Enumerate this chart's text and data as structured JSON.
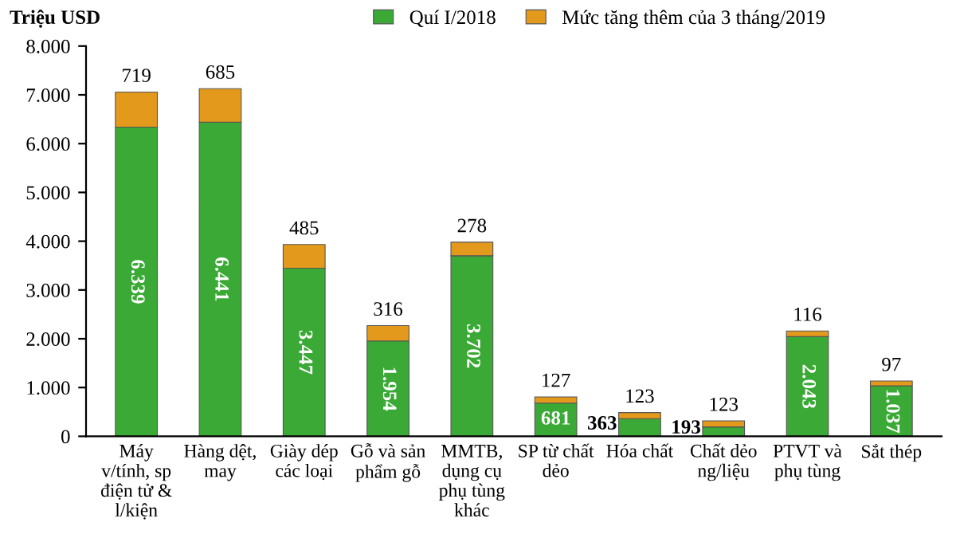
{
  "chart_data": {
    "type": "bar",
    "stacked": true,
    "ylabel": "Triệu USD",
    "categories": [
      "Máy\nv/tính, sp\nđiện tử &\nl/kiện",
      "Hàng dệt,\nmay",
      "Giày dép\ncác loại",
      "Gỗ và sản\nphẩm gỗ",
      "MMTB,\ndụng cụ\nphụ tùng\nkhác",
      "SP từ chất\ndẻo",
      "Hóa chất",
      "Chất dẻo\nng/liệu",
      "PTVT và\nphụ tùng",
      "Sắt thép"
    ],
    "series": [
      {
        "name": "Quí I/2018",
        "color": "#3aa935",
        "values": [
          6339,
          6441,
          3447,
          1954,
          3702,
          681,
          363,
          193,
          2043,
          1037
        ],
        "value_labels": [
          "6.339",
          "6.441",
          "3.447",
          "1.954",
          "3.702",
          "681",
          "363",
          "193",
          "2.043",
          "1.037"
        ]
      },
      {
        "name": "Mức tăng thêm của 3 tháng/2019",
        "color": "#e39a1c",
        "values": [
          719,
          685,
          485,
          316,
          278,
          127,
          123,
          123,
          116,
          97
        ],
        "value_labels": [
          "719",
          "685",
          "485",
          "316",
          "278",
          "127",
          "123",
          "123",
          "116",
          "97"
        ]
      }
    ],
    "ylim": [
      0,
      8000
    ],
    "yticks": [
      {
        "value": 0,
        "label": "0"
      },
      {
        "value": 1000,
        "label": "1.000"
      },
      {
        "value": 2000,
        "label": "2.000"
      },
      {
        "value": 3000,
        "label": "3.000"
      },
      {
        "value": 4000,
        "label": "4.000"
      },
      {
        "value": 5000,
        "label": "5.000"
      },
      {
        "value": 6000,
        "label": "6.000"
      },
      {
        "value": 7000,
        "label": "7.000"
      },
      {
        "value": 8000,
        "label": "8.000"
      }
    ],
    "grid": false,
    "legend": "top"
  }
}
